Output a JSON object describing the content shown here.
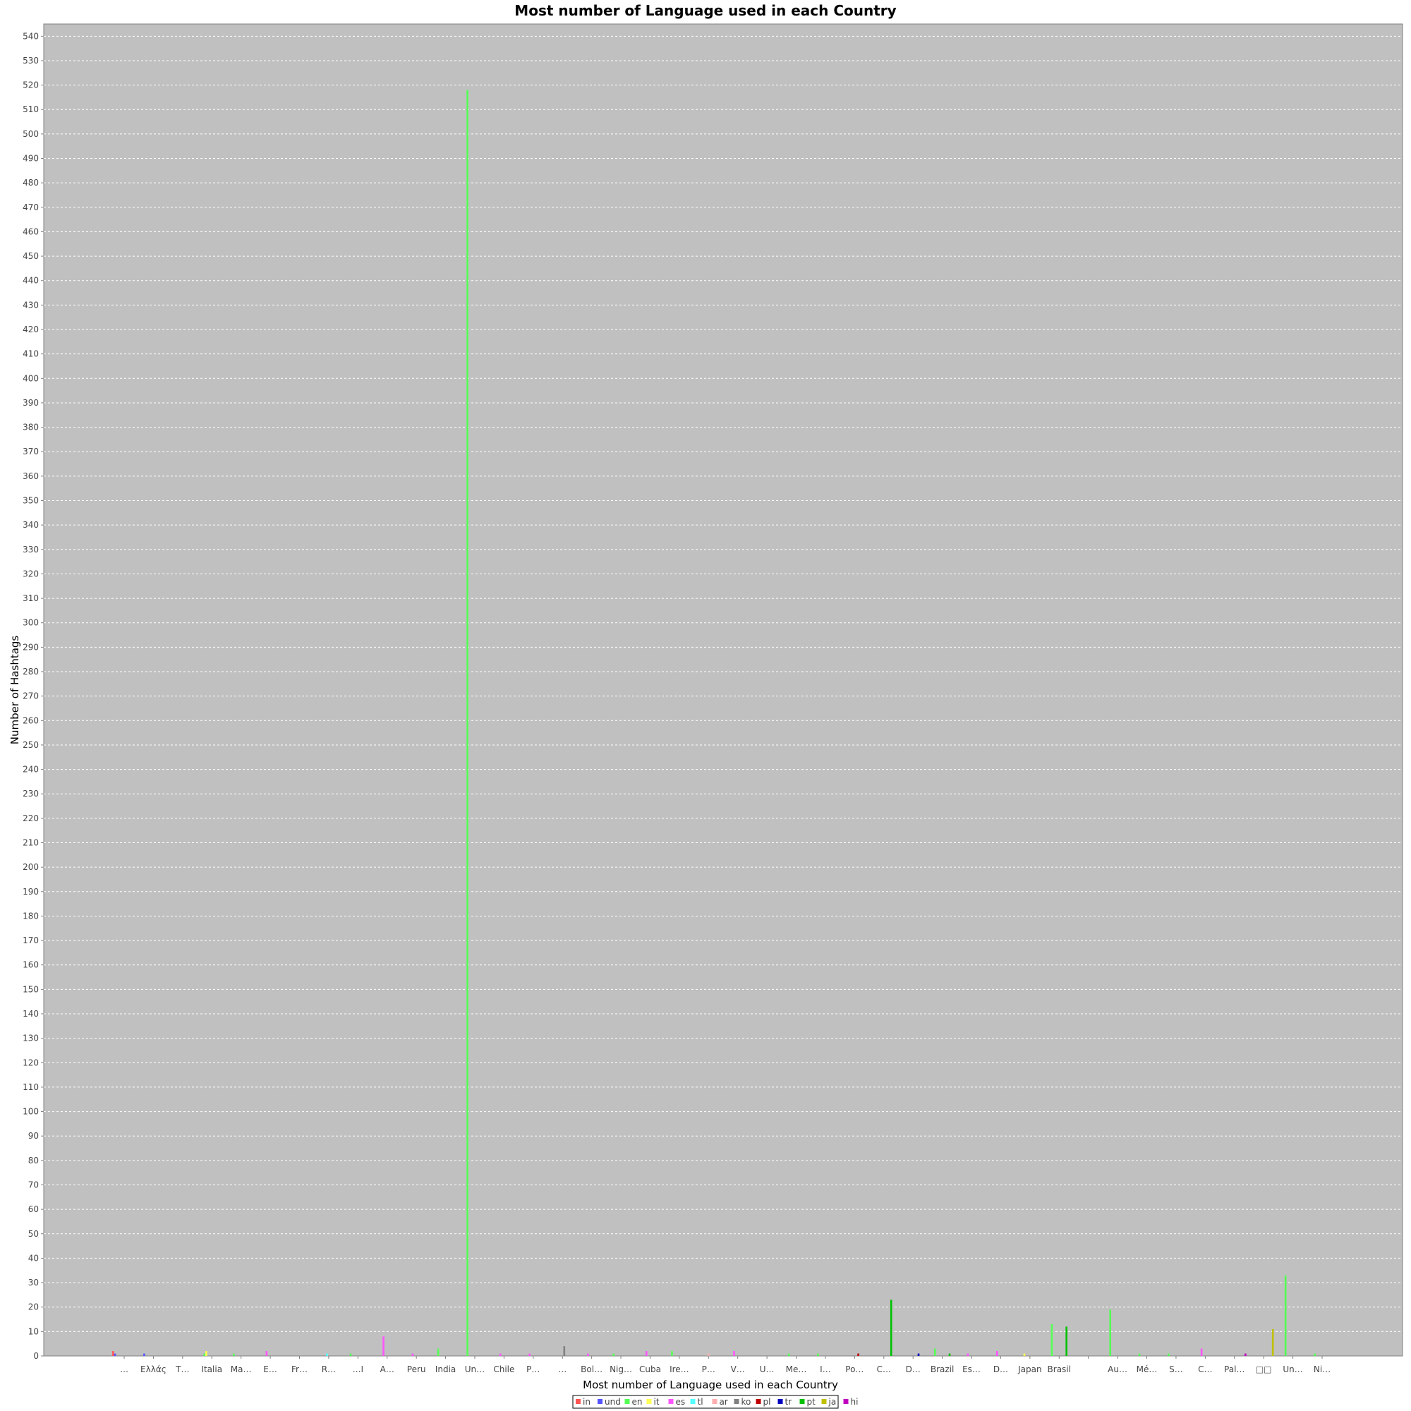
{
  "chart_data": {
    "type": "bar",
    "title": "Most number of Language used in each Country",
    "xlabel": "Most number of Language used in each Country",
    "ylabel": "Number of Hashtags",
    "ylim": [
      0,
      545
    ],
    "ytick_step": 10,
    "grid": true,
    "legend": "bottom",
    "categories": [
      "…",
      "Ελλάς",
      "T…",
      "Italia",
      "Ma…",
      "E…",
      "Fr…",
      "R…",
      "…ا",
      "A…",
      "Peru",
      "India",
      "Un…",
      "Chile",
      "P…",
      "…",
      "Bol…",
      "Nig…",
      "Cuba",
      "Ire…",
      "P…",
      "V…",
      "U…",
      "Me…",
      "I…",
      "Po…",
      "C…",
      "D…",
      "Brazil",
      "Es…",
      "D…",
      "Japan",
      "Brasil",
      "",
      "Au…",
      "Mé…",
      "S…",
      "C…",
      "Pal…",
      "□□",
      "Un…",
      "Ni…"
    ],
    "series": [
      {
        "name": "in",
        "color": "#ff5555",
        "values": [
          2,
          0,
          0,
          0,
          0,
          0,
          0,
          0,
          0,
          0,
          0,
          0,
          0,
          0,
          0,
          0,
          0,
          0,
          0,
          0,
          0,
          0,
          0,
          0,
          0,
          0,
          0,
          0,
          0,
          0,
          0,
          0,
          0,
          0,
          0,
          0,
          0,
          0,
          0,
          0,
          0,
          0
        ]
      },
      {
        "name": "und",
        "color": "#5555ff",
        "values": [
          1,
          1,
          0,
          0,
          0,
          0,
          0,
          0,
          0,
          0,
          0,
          0,
          0,
          0,
          0,
          0,
          0,
          0,
          0,
          0,
          0,
          0,
          0,
          0,
          0,
          0,
          0,
          0,
          0,
          0,
          0,
          0,
          0,
          0,
          0,
          0,
          0,
          0,
          0,
          0,
          0,
          0
        ]
      },
      {
        "name": "en",
        "color": "#55ff55",
        "values": [
          0,
          0,
          0,
          1,
          1,
          0,
          0,
          0,
          1,
          0,
          0,
          3,
          518,
          0,
          0,
          0,
          0,
          1,
          0,
          2,
          0,
          0,
          0,
          1,
          1,
          0,
          0,
          0,
          3,
          0,
          0,
          0,
          13,
          0,
          19,
          1,
          1,
          0,
          0,
          0,
          33,
          1
        ]
      },
      {
        "name": "it",
        "color": "#ffff55",
        "values": [
          0,
          0,
          0,
          2,
          0,
          0,
          0,
          0,
          0,
          0,
          0,
          0,
          0,
          0,
          0,
          0,
          0,
          0,
          0,
          0,
          0,
          0,
          0,
          0,
          0,
          0,
          0,
          0,
          0,
          0,
          0,
          1,
          0,
          0,
          0,
          0,
          0,
          0,
          0,
          0,
          0,
          0
        ]
      },
      {
        "name": "es",
        "color": "#ff55ff",
        "values": [
          0,
          0,
          0,
          0,
          0,
          2,
          0,
          0,
          0,
          8,
          1,
          0,
          0,
          1,
          1,
          0,
          1,
          0,
          2,
          0,
          0,
          2,
          0,
          0,
          0,
          0,
          0,
          0,
          0,
          1,
          2,
          0,
          0,
          0,
          0,
          0,
          0,
          3,
          0,
          0,
          0,
          0
        ]
      },
      {
        "name": "tl",
        "color": "#55ffff",
        "values": [
          0,
          0,
          0,
          0,
          0,
          0,
          0,
          1,
          0,
          0,
          0,
          0,
          0,
          0,
          0,
          0,
          0,
          0,
          0,
          0,
          0,
          0,
          0,
          0,
          0,
          0,
          0,
          0,
          0,
          0,
          0,
          0,
          0,
          0,
          0,
          0,
          0,
          0,
          0,
          0,
          0,
          0
        ]
      },
      {
        "name": "ar",
        "color": "#ffafaf",
        "values": [
          0,
          0,
          0,
          0,
          0,
          0,
          0,
          0,
          0,
          0,
          0,
          0,
          0,
          0,
          0,
          0,
          0,
          0,
          0,
          0,
          1,
          0,
          0,
          0,
          0,
          0,
          0,
          0,
          0,
          0,
          0,
          0,
          0,
          0,
          0,
          0,
          0,
          0,
          0,
          0,
          0,
          0
        ]
      },
      {
        "name": "ko",
        "color": "#808080",
        "values": [
          0,
          0,
          0,
          0,
          0,
          0,
          0,
          0,
          0,
          0,
          0,
          0,
          0,
          0,
          0,
          4,
          0,
          0,
          0,
          0,
          0,
          0,
          0,
          0,
          0,
          0,
          0,
          0,
          0,
          0,
          0,
          0,
          0,
          0,
          0,
          0,
          0,
          0,
          0,
          0,
          0,
          0
        ]
      },
      {
        "name": "pl",
        "color": "#c00000",
        "values": [
          0,
          0,
          0,
          0,
          0,
          0,
          0,
          0,
          0,
          0,
          0,
          0,
          0,
          0,
          0,
          0,
          0,
          0,
          0,
          0,
          0,
          0,
          0,
          0,
          0,
          1,
          0,
          0,
          0,
          0,
          0,
          0,
          0,
          0,
          0,
          0,
          0,
          0,
          0,
          0,
          0,
          0
        ]
      },
      {
        "name": "tr",
        "color": "#0000c0",
        "values": [
          0,
          0,
          0,
          0,
          0,
          0,
          0,
          0,
          0,
          0,
          0,
          0,
          0,
          0,
          0,
          0,
          0,
          0,
          0,
          0,
          0,
          0,
          0,
          0,
          0,
          0,
          0,
          1,
          0,
          0,
          0,
          0,
          0,
          0,
          0,
          0,
          0,
          0,
          0,
          0,
          0,
          0
        ]
      },
      {
        "name": "pt",
        "color": "#00c000",
        "values": [
          0,
          0,
          0,
          0,
          0,
          0,
          0,
          0,
          0,
          0,
          0,
          0,
          0,
          0,
          0,
          0,
          0,
          0,
          0,
          0,
          0,
          0,
          0,
          0,
          0,
          0,
          23,
          0,
          1,
          0,
          0,
          0,
          12,
          0,
          0,
          0,
          0,
          0,
          0,
          0,
          0,
          0
        ]
      },
      {
        "name": "ja",
        "color": "#c0c000",
        "values": [
          0,
          0,
          0,
          0,
          0,
          0,
          0,
          0,
          0,
          0,
          0,
          0,
          0,
          0,
          0,
          0,
          0,
          0,
          0,
          0,
          0,
          0,
          0,
          0,
          0,
          0,
          0,
          0,
          0,
          0,
          0,
          0,
          0,
          0,
          0,
          0,
          0,
          0,
          0,
          11,
          0,
          0
        ]
      },
      {
        "name": "hi",
        "color": "#c000c0",
        "values": [
          0,
          0,
          0,
          0,
          0,
          0,
          0,
          0,
          0,
          0,
          0,
          0,
          0,
          0,
          0,
          0,
          0,
          0,
          0,
          0,
          0,
          0,
          0,
          0,
          0,
          0,
          0,
          0,
          0,
          0,
          0,
          0,
          0,
          0,
          0,
          0,
          0,
          0,
          1,
          0,
          0,
          0
        ]
      }
    ]
  }
}
